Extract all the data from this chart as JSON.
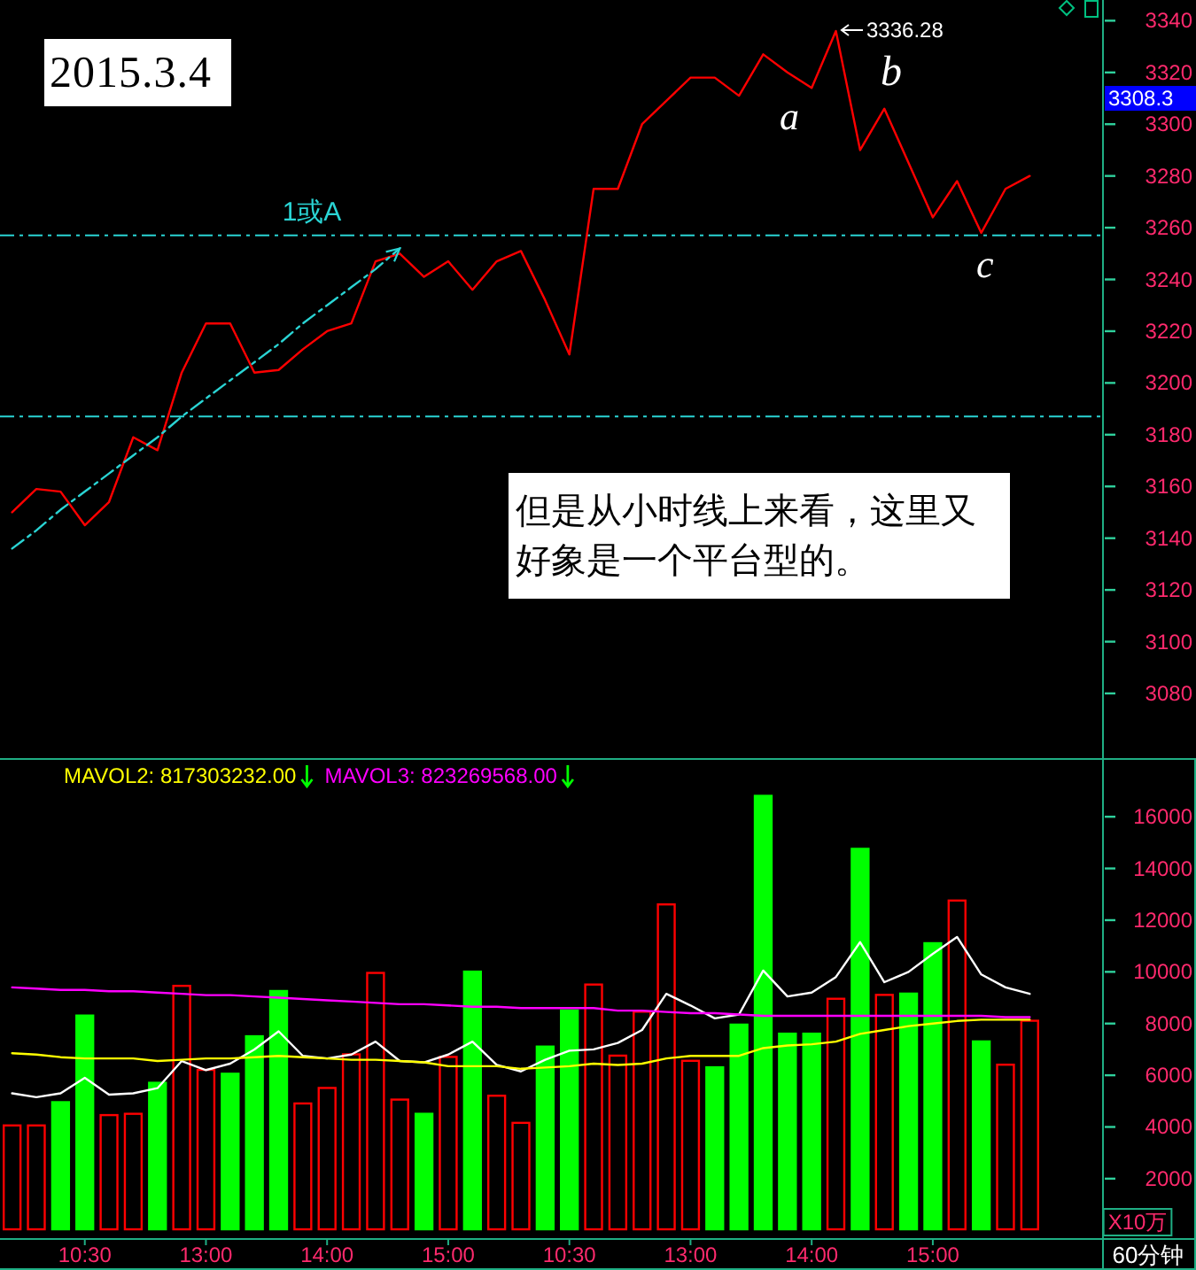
{
  "chart_data": [
    {
      "type": "line",
      "title": "2015.3.4",
      "categories": [
        null,
        null,
        null,
        null,
        null,
        null,
        null,
        null,
        null,
        null,
        null,
        null,
        null,
        null,
        null,
        null,
        null,
        null,
        null,
        null,
        null,
        null,
        null,
        null,
        null,
        null,
        null,
        null,
        null,
        null,
        null,
        null,
        null,
        null,
        null,
        null,
        null,
        null,
        null,
        null,
        null,
        null,
        null
      ],
      "series": [
        {
          "color": "#ff0000",
          "values": [
            3150,
            3159,
            3158,
            3145,
            3154,
            3179,
            3174,
            3204,
            3223,
            3223,
            3204,
            3205,
            3213,
            3220,
            3223,
            3247,
            3250,
            3241,
            3247,
            3236,
            3247,
            3251,
            3232,
            3211,
            3275,
            3275,
            3300,
            3309,
            3318,
            3318,
            3311,
            3327,
            3320,
            3314,
            3336,
            3290,
            3306,
            3285,
            3264,
            3278,
            3258,
            3275,
            3280
          ]
        },
        {
          "color": "#2ad4d4",
          "line_style": "dashed",
          "values": [
            3136,
            3143,
            3151,
            3158,
            3165,
            3172,
            3179,
            3187,
            3194,
            3201,
            3208,
            3215,
            3223,
            3230,
            3237,
            3244,
            3252,
            null,
            null,
            null,
            null,
            null,
            null,
            null,
            null,
            null,
            null,
            null,
            null,
            null,
            null,
            null,
            null,
            null,
            null,
            null,
            null,
            null,
            null,
            null,
            null,
            null,
            null
          ]
        }
      ],
      "ylim": [
        3055,
        3348
      ],
      "yticks": [
        3080,
        3100,
        3120,
        3140,
        3160,
        3180,
        3200,
        3220,
        3240,
        3260,
        3280,
        3300,
        3320,
        3340
      ],
      "tick_labels": "y",
      "ref_lines": [
        {
          "axis": "y",
          "value": 3257,
          "label": "1或A",
          "color": "#2ad4d4",
          "line_style": "dashed"
        },
        {
          "axis": "y",
          "value": 3187,
          "color": "#2ad4d4",
          "line_style": "dashed"
        }
      ],
      "annotations": [
        "3336.28",
        "a",
        "b",
        "c",
        "3308.3",
        "但是从小时线上来看，这里又好象是一个平台型的。"
      ]
    },
    {
      "type": "bar",
      "categories": [
        null,
        null,
        null,
        "10:30",
        null,
        null,
        null,
        null,
        "13:00",
        null,
        null,
        null,
        null,
        "14:00",
        null,
        null,
        null,
        null,
        "15:00",
        null,
        null,
        null,
        null,
        "10:30",
        null,
        null,
        null,
        null,
        "13:00",
        null,
        null,
        null,
        null,
        "14:00",
        null,
        null,
        null,
        null,
        "15:00",
        null,
        null,
        null,
        null
      ],
      "series": [
        {
          "color": "#ff0000",
          "values": [
            4100,
            4100,
            null,
            null,
            4500,
            4550,
            null,
            9500,
            6250,
            null,
            null,
            null,
            4950,
            5550,
            6850,
            10000,
            5100,
            null,
            6750,
            null,
            5250,
            4200,
            null,
            null,
            9550,
            6800,
            8500,
            12650,
            6600,
            null,
            null,
            null,
            null,
            null,
            9000,
            null,
            9150,
            null,
            null,
            12800,
            null,
            6450,
            8150
          ]
        },
        {
          "color": "#00ff00",
          "values": [
            null,
            null,
            5000,
            8350,
            null,
            null,
            5750,
            null,
            null,
            6100,
            7550,
            9300,
            null,
            null,
            null,
            null,
            null,
            4550,
            null,
            10050,
            null,
            null,
            7150,
            8550,
            null,
            null,
            null,
            null,
            null,
            6350,
            8000,
            16850,
            7650,
            7650,
            null,
            14800,
            null,
            9200,
            11150,
            null,
            7350,
            null,
            null
          ]
        },
        {
          "type": "line",
          "color": "#ffffff",
          "values": [
            5300,
            5150,
            5300,
            5900,
            5250,
            5300,
            5500,
            6550,
            6200,
            6450,
            7000,
            7700,
            6750,
            6650,
            6800,
            7300,
            6550,
            6500,
            6800,
            7300,
            6400,
            6150,
            6600,
            6950,
            7000,
            7250,
            7750,
            9150,
            8700,
            8200,
            8350,
            10050,
            9050,
            9200,
            9800,
            11150,
            9600,
            10000,
            10700,
            11350,
            9900,
            9400,
            9150
          ]
        },
        {
          "type": "line",
          "name": "MAVOL2: 817303232.00",
          "color": "#ffff00",
          "values": [
            6850,
            6800,
            6700,
            6650,
            6650,
            6650,
            6550,
            6600,
            6650,
            6650,
            6700,
            6750,
            6700,
            6650,
            6600,
            6600,
            6550,
            6500,
            6350,
            6350,
            6350,
            6250,
            6300,
            6350,
            6450,
            6400,
            6450,
            6650,
            6750,
            6750,
            6750,
            7050,
            7150,
            7200,
            7300,
            7600,
            7750,
            7900,
            8000,
            8100,
            8150,
            8150,
            8150
          ]
        },
        {
          "type": "line",
          "name": "MAVOL3: 823269568.00",
          "color": "#ff00ff",
          "values": [
            9400,
            9350,
            9300,
            9300,
            9250,
            9250,
            9200,
            9150,
            9100,
            9100,
            9050,
            9000,
            8950,
            8900,
            8850,
            8800,
            8750,
            8750,
            8700,
            8650,
            8650,
            8600,
            8600,
            8600,
            8600,
            8500,
            8500,
            8450,
            8400,
            8400,
            8350,
            8300,
            8300,
            8300,
            8300,
            8300,
            8300,
            8300,
            8300,
            8300,
            8300,
            8250,
            8250
          ]
        }
      ],
      "ylim": [
        -300,
        18200
      ],
      "yticks": [
        2000,
        4000,
        6000,
        8000,
        10000,
        12000,
        14000,
        16000
      ],
      "ylabel": "X10万",
      "legend": "top left",
      "annotations": [
        "60分钟"
      ]
    }
  ]
}
